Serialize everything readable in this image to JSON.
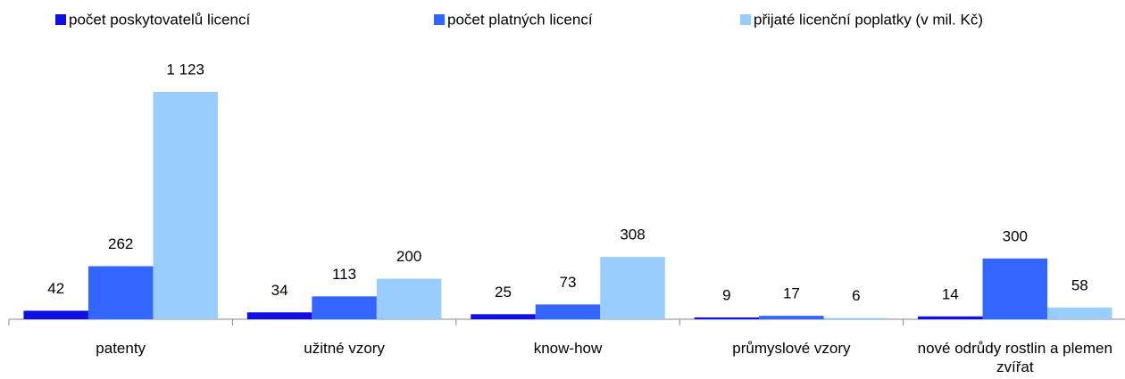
{
  "chart_data": {
    "type": "bar",
    "categories": [
      "patenty",
      "užitné vzory",
      "know-how",
      "průmyslové vzory",
      "nové odrůdy rostlin a plemen zvířat"
    ],
    "series": [
      {
        "name": "počet poskytovatelů licencí",
        "color": "#1010e0",
        "values": [
          42,
          34,
          25,
          9,
          14
        ]
      },
      {
        "name": "počet platných licencí",
        "color": "#3366ff",
        "values": [
          262,
          113,
          73,
          17,
          300
        ]
      },
      {
        "name": "přijaté licenční poplatky (v mil. Kč)",
        "color": "#99ccff",
        "values": [
          1123,
          200,
          308,
          6,
          58
        ]
      }
    ],
    "value_labels": [
      [
        "42",
        "34",
        "25",
        "9",
        "14"
      ],
      [
        "262",
        "113",
        "73",
        "17",
        "300"
      ],
      [
        "1 123",
        "200",
        "308",
        "6",
        "58"
      ]
    ],
    "legend": "top"
  }
}
